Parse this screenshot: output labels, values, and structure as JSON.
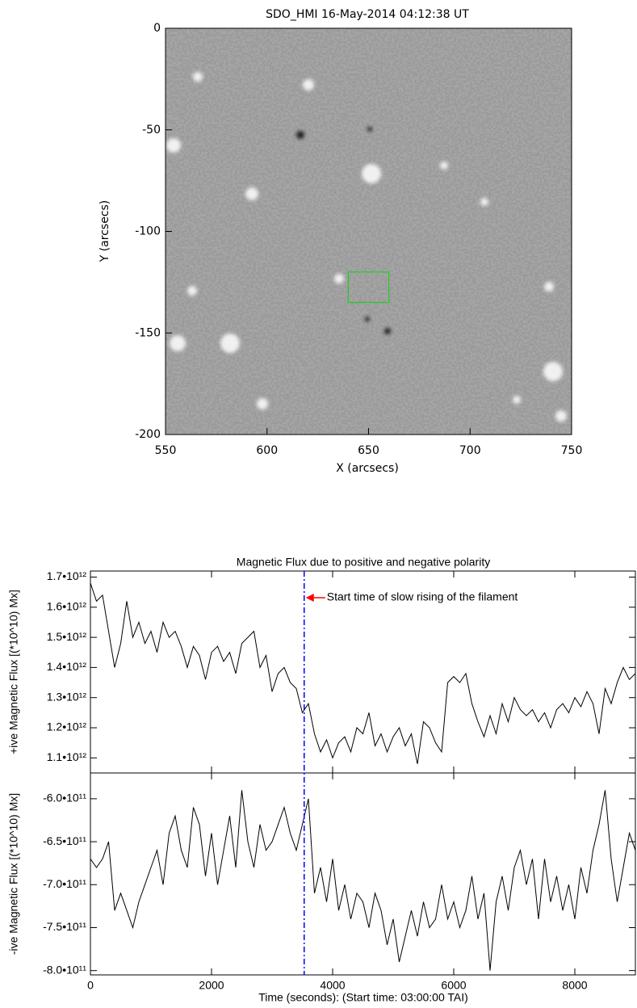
{
  "chart_data": [
    {
      "type": "image",
      "title": "SDO_HMI 16-May-2014 04:12:38 UT",
      "xlabel": "X (arcsecs)",
      "ylabel": "Y (arcsecs)",
      "xlim": [
        550,
        750
      ],
      "xticks": [
        550,
        600,
        650,
        700,
        750
      ],
      "ylim": [
        -200,
        0
      ],
      "yticks": [
        0,
        -50,
        -100,
        -150,
        -200
      ],
      "box": {
        "x": [
          640,
          660
        ],
        "y": [
          -135,
          -120
        ],
        "color": "#22cc22"
      }
    },
    {
      "type": "line",
      "title": "Magnetic Flux due to positive and negative polarity",
      "xlabel": "Time (seconds): (Start time: 03:00:00 TAI)",
      "xlim": [
        0,
        9000
      ],
      "xticks": [
        0,
        2000,
        4000,
        6000,
        8000
      ],
      "vline": {
        "x": 3530,
        "color": "#0000ff",
        "label": "Start time of slow rising of the filament",
        "label_color": "#ff0000"
      },
      "x": [
        0,
        100,
        200,
        300,
        400,
        500,
        600,
        700,
        800,
        900,
        1000,
        1100,
        1200,
        1300,
        1400,
        1500,
        1600,
        1700,
        1800,
        1900,
        2000,
        2100,
        2200,
        2300,
        2400,
        2500,
        2600,
        2700,
        2800,
        2900,
        3000,
        3100,
        3200,
        3300,
        3400,
        3500,
        3600,
        3700,
        3800,
        3900,
        4000,
        4100,
        4200,
        4300,
        4400,
        4500,
        4600,
        4700,
        4800,
        4900,
        5000,
        5100,
        5200,
        5300,
        5400,
        5500,
        5600,
        5700,
        5800,
        5900,
        6000,
        6100,
        6200,
        6300,
        6400,
        6500,
        6600,
        6700,
        6800,
        6900,
        7000,
        7100,
        7200,
        7300,
        7400,
        7500,
        7600,
        7700,
        7800,
        7900,
        8000,
        8100,
        8200,
        8300,
        8400,
        8500,
        8600,
        8700,
        8800,
        8900,
        9000
      ],
      "panels": [
        {
          "ylabel": "+ive Magnetic Flux [(*10^10) Mx]",
          "ylim": [
            1050000000000.0,
            1720000000000.0
          ],
          "yticks": [
            {
              "value": 1100000000000.0,
              "label": "1.1•10¹²"
            },
            {
              "value": 1200000000000.0,
              "label": "1.2•10¹²"
            },
            {
              "value": 1300000000000.0,
              "label": "1.3•10¹²"
            },
            {
              "value": 1400000000000.0,
              "label": "1.4•10¹²"
            },
            {
              "value": 1500000000000.0,
              "label": "1.5•10¹²"
            },
            {
              "value": 1600000000000.0,
              "label": "1.6•10¹²"
            },
            {
              "value": 1700000000000.0,
              "label": "1.7•10¹²"
            }
          ],
          "series": [
            {
              "color": "#000000",
              "values": [
                1680000000000.0,
                1620000000000.0,
                1640000000000.0,
                1520000000000.0,
                1400000000000.0,
                1480000000000.0,
                1620000000000.0,
                1500000000000.0,
                1550000000000.0,
                1480000000000.0,
                1520000000000.0,
                1450000000000.0,
                1550000000000.0,
                1500000000000.0,
                1520000000000.0,
                1470000000000.0,
                1400000000000.0,
                1470000000000.0,
                1440000000000.0,
                1360000000000.0,
                1450000000000.0,
                1470000000000.0,
                1420000000000.0,
                1450000000000.0,
                1380000000000.0,
                1480000000000.0,
                1500000000000.0,
                1520000000000.0,
                1400000000000.0,
                1440000000000.0,
                1320000000000.0,
                1380000000000.0,
                1400000000000.0,
                1350000000000.0,
                1330000000000.0,
                1250000000000.0,
                1280000000000.0,
                1180000000000.0,
                1120000000000.0,
                1160000000000.0,
                1100000000000.0,
                1150000000000.0,
                1170000000000.0,
                1120000000000.0,
                1200000000000.0,
                1180000000000.0,
                1250000000000.0,
                1140000000000.0,
                1180000000000.0,
                1120000000000.0,
                1170000000000.0,
                1200000000000.0,
                1140000000000.0,
                1180000000000.0,
                1080000000000.0,
                1220000000000.0,
                1200000000000.0,
                1150000000000.0,
                1120000000000.0,
                1350000000000.0,
                1370000000000.0,
                1350000000000.0,
                1380000000000.0,
                1280000000000.0,
                1220000000000.0,
                1170000000000.0,
                1240000000000.0,
                1180000000000.0,
                1280000000000.0,
                1220000000000.0,
                1300000000000.0,
                1260000000000.0,
                1240000000000.0,
                1260000000000.0,
                1220000000000.0,
                1250000000000.0,
                1200000000000.0,
                1260000000000.0,
                1280000000000.0,
                1250000000000.0,
                1300000000000.0,
                1270000000000.0,
                1320000000000.0,
                1280000000000.0,
                1180000000000.0,
                1330000000000.0,
                1280000000000.0,
                1350000000000.0,
                1400000000000.0,
                1360000000000.0,
                1380000000000.0
              ]
            }
          ]
        },
        {
          "ylabel": "-ive Magnetic Flux [(*10^10) Mx]",
          "ylim": [
            -805000000000.0,
            -570000000000.0
          ],
          "yticks": [
            {
              "value": -800000000000.0,
              "label": "-8.0•10¹¹"
            },
            {
              "value": -750000000000.0,
              "label": "-7.5•10¹¹"
            },
            {
              "value": -700000000000.0,
              "label": "-7.0•10¹¹"
            },
            {
              "value": -650000000000.0,
              "label": "-6.5•10¹¹"
            },
            {
              "value": -600000000000.0,
              "label": "-6.0•10¹¹"
            }
          ],
          "series": [
            {
              "color": "#000000",
              "values": [
                -670000000000.0,
                -680000000000.0,
                -670000000000.0,
                -650000000000.0,
                -730000000000.0,
                -710000000000.0,
                -730000000000.0,
                -750000000000.0,
                -720000000000.0,
                -700000000000.0,
                -680000000000.0,
                -660000000000.0,
                -700000000000.0,
                -640000000000.0,
                -620000000000.0,
                -660000000000.0,
                -680000000000.0,
                -610000000000.0,
                -630000000000.0,
                -690000000000.0,
                -640000000000.0,
                -700000000000.0,
                -660000000000.0,
                -620000000000.0,
                -680000000000.0,
                -590000000000.0,
                -650000000000.0,
                -680000000000.0,
                -630000000000.0,
                -660000000000.0,
                -650000000000.0,
                -630000000000.0,
                -610000000000.0,
                -640000000000.0,
                -660000000000.0,
                -630000000000.0,
                -600000000000.0,
                -710000000000.0,
                -680000000000.0,
                -720000000000.0,
                -670000000000.0,
                -730000000000.0,
                -700000000000.0,
                -740000000000.0,
                -710000000000.0,
                -720000000000.0,
                -750000000000.0,
                -710000000000.0,
                -730000000000.0,
                -770000000000.0,
                -740000000000.0,
                -790000000000.0,
                -760000000000.0,
                -730000000000.0,
                -760000000000.0,
                -720000000000.0,
                -750000000000.0,
                -740000000000.0,
                -700000000000.0,
                -740000000000.0,
                -720000000000.0,
                -750000000000.0,
                -730000000000.0,
                -690000000000.0,
                -740000000000.0,
                -710000000000.0,
                -800000000000.0,
                -720000000000.0,
                -690000000000.0,
                -730000000000.0,
                -680000000000.0,
                -660000000000.0,
                -700000000000.0,
                -670000000000.0,
                -740000000000.0,
                -670000000000.0,
                -720000000000.0,
                -690000000000.0,
                -730000000000.0,
                -700000000000.0,
                -740000000000.0,
                -680000000000.0,
                -710000000000.0,
                -660000000000.0,
                -630000000000.0,
                -590000000000.0,
                -670000000000.0,
                -720000000000.0,
                -680000000000.0,
                -640000000000.0,
                -660000000000.0
              ]
            }
          ]
        }
      ]
    }
  ]
}
